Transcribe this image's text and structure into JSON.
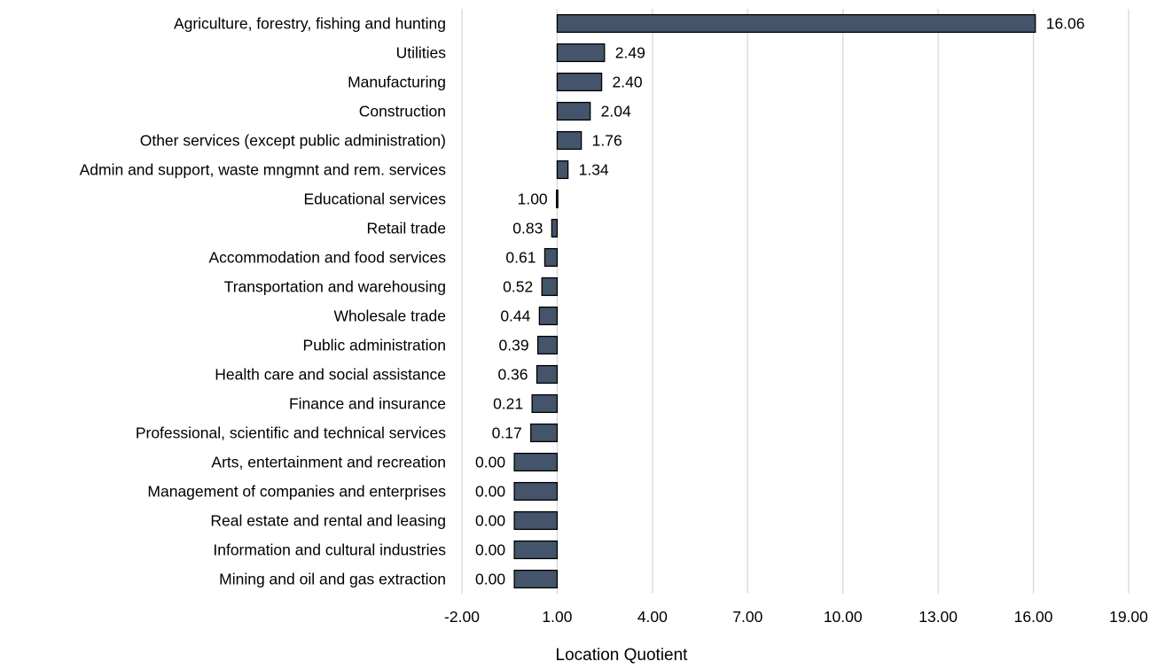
{
  "chart_data": {
    "type": "bar",
    "orientation": "horizontal",
    "xlabel": "Location Quotient",
    "ylabel": "",
    "xlim": [
      -2,
      19
    ],
    "x_ticks": [
      -2,
      1,
      4,
      7,
      10,
      13,
      16,
      19
    ],
    "x_tick_labels": [
      "-2.00",
      "1.00",
      "4.00",
      "7.00",
      "10.00",
      "13.00",
      "16.00",
      "19.00"
    ],
    "baseline": 1,
    "bar_color": "#44546a",
    "grid": "vertical",
    "categories": [
      "Agriculture, forestry, fishing and hunting",
      "Utilities",
      "Manufacturing",
      "Construction",
      "Other services (except public administration)",
      "Admin and support, waste mngmnt and rem. services",
      "Educational services",
      "Retail trade",
      "Accommodation and food services",
      "Transportation and warehousing",
      "Wholesale trade",
      "Public administration",
      "Health care and social assistance",
      "Finance and insurance",
      "Professional, scientific and technical services",
      "Arts, entertainment and recreation",
      "Management of companies and enterprises",
      "Real estate and rental and leasing",
      "Information and cultural industries",
      "Mining and oil and gas extraction"
    ],
    "values": [
      16.06,
      2.49,
      2.4,
      2.04,
      1.76,
      1.34,
      1.0,
      0.83,
      0.61,
      0.52,
      0.44,
      0.39,
      0.36,
      0.21,
      0.17,
      0.0,
      0.0,
      0.0,
      0.0,
      0.0
    ],
    "value_labels": [
      "16.06",
      "2.49",
      "2.40",
      "2.04",
      "1.76",
      "1.34",
      "1.00",
      "0.83",
      "0.61",
      "0.52",
      "0.44",
      "0.39",
      "0.36",
      "0.21",
      "0.17",
      "0.00",
      "0.00",
      "0.00",
      "0.00",
      "0.00"
    ]
  }
}
